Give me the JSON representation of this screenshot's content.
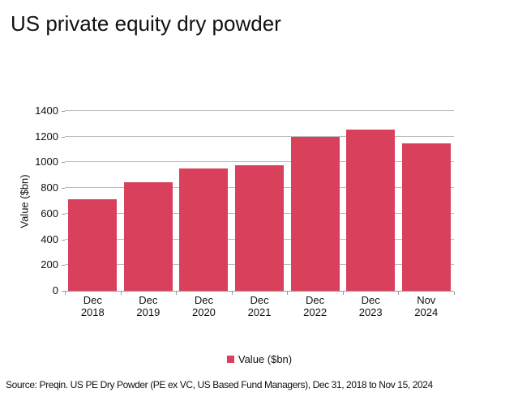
{
  "title": "US private equity dry powder",
  "source_text": "Source: Preqin. US PE Dry Powder (PE ex VC, US Based Fund Managers), Dec 31, 2018 to Nov 15, 2024",
  "legend": {
    "label": "Value ($bn)"
  },
  "colors": {
    "bar": "#d8405c",
    "gridline": "#bdbdbd",
    "axis_line": "#9a9a9a",
    "text": "#111111"
  },
  "chart_data": {
    "type": "bar",
    "title": "US private equity dry powder",
    "categories": [
      "Dec 2018",
      "Dec 2019",
      "Dec 2020",
      "Dec 2021",
      "Dec 2022",
      "Dec 2023",
      "Nov 2024"
    ],
    "values": [
      710,
      845,
      955,
      980,
      1200,
      1255,
      1150
    ],
    "xlabel": "",
    "ylabel": "Value ($bn)",
    "ylim": [
      0,
      1400
    ],
    "yticks": [
      0,
      200,
      400,
      600,
      800,
      1000,
      1200,
      1400
    ],
    "grid": true,
    "legend_entries": [
      "Value ($bn)"
    ],
    "legend_position": "bottom",
    "bar_color": "#d8405c"
  }
}
